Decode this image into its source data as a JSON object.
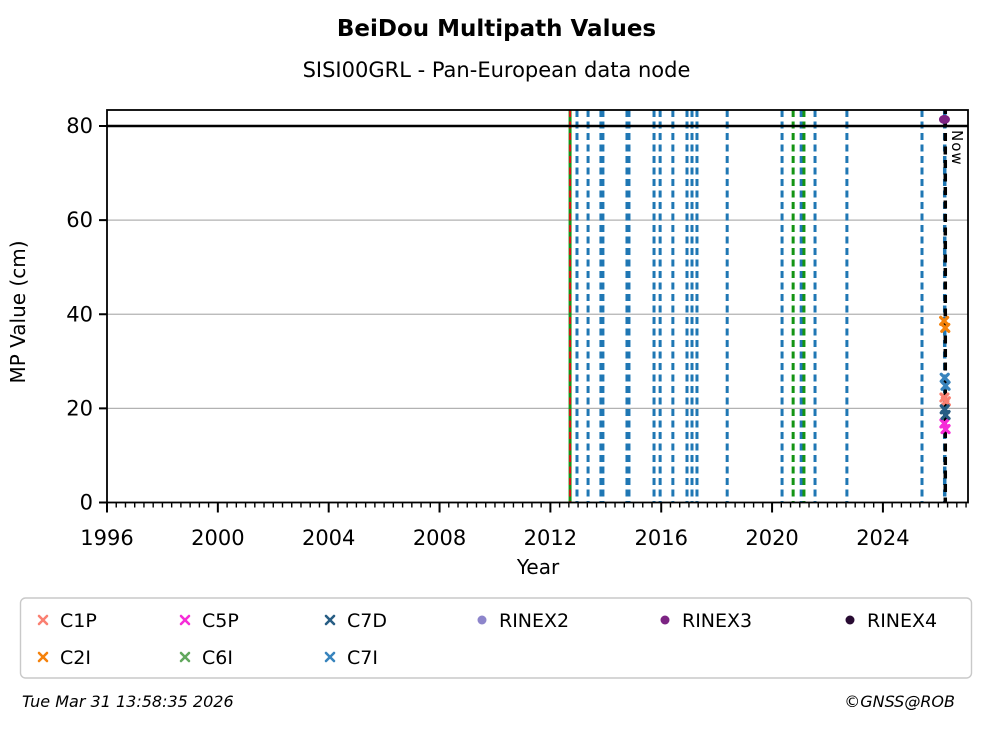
{
  "header": {
    "title": "BeiDou Multipath Values",
    "subtitle": "SISI00GRL - Pan-European data node"
  },
  "footer": {
    "timestamp": "Tue Mar 31 13:58:35 2026",
    "credit": "©GNSS@ROB"
  },
  "chart_data": {
    "type": "scatter",
    "title": "BeiDou Multipath Values",
    "subtitle": "SISI00GRL - Pan-European data node",
    "xlabel": "Year",
    "ylabel": "MP Value (cm)",
    "xlim": [
      1996,
      2027.07
    ],
    "ylim": [
      0,
      83.4
    ],
    "x_major_ticks": [
      1996,
      2000,
      2004,
      2008,
      2012,
      2016,
      2020,
      2024
    ],
    "x_minor_tick_step_years": 0.33333,
    "y_ticks": [
      0,
      20,
      40,
      60,
      80
    ],
    "grid_y": [
      20,
      40,
      60
    ],
    "grid_color": "#b2b2b2",
    "saturation_line": {
      "y": 80,
      "color": "#000000",
      "width": 2.5
    },
    "now_line": {
      "year": 2026.25,
      "label": "Now",
      "color": "#000000"
    },
    "event_lines": [
      {
        "year": 2012.71,
        "color": "#149414",
        "style": "solid",
        "width": 3
      },
      {
        "year": 2012.71,
        "color": "#dd1111",
        "style": "dashed",
        "width": 2
      },
      {
        "year": 2012.96,
        "color": "#1f77b4",
        "style": "dashed",
        "width": 3
      },
      {
        "year": 2013.36,
        "color": "#1f77b4",
        "style": "dashed",
        "width": 3
      },
      {
        "year": 2013.86,
        "color": "#1f77b4",
        "style": "dashed",
        "width": 5
      },
      {
        "year": 2014.8,
        "color": "#1f77b4",
        "style": "dashed",
        "width": 5
      },
      {
        "year": 2015.74,
        "color": "#1f77b4",
        "style": "dashed",
        "width": 3
      },
      {
        "year": 2015.96,
        "color": "#1f77b4",
        "style": "dashed",
        "width": 3
      },
      {
        "year": 2016.42,
        "color": "#1f77b4",
        "style": "dashed",
        "width": 3
      },
      {
        "year": 2016.93,
        "color": "#1f77b4",
        "style": "dashed",
        "width": 3
      },
      {
        "year": 2017.11,
        "color": "#1f77b4",
        "style": "dashed",
        "width": 3
      },
      {
        "year": 2017.29,
        "color": "#1f77b4",
        "style": "dashed",
        "width": 3
      },
      {
        "year": 2018.38,
        "color": "#1f77b4",
        "style": "dashed",
        "width": 3
      },
      {
        "year": 2020.36,
        "color": "#1f77b4",
        "style": "dashed",
        "width": 3
      },
      {
        "year": 2020.76,
        "color": "#149414",
        "style": "dashed",
        "width": 3
      },
      {
        "year": 2021.05,
        "color": "#1f77b4",
        "style": "dashed",
        "width": 3
      },
      {
        "year": 2021.15,
        "color": "#149414",
        "style": "dashed",
        "width": 3
      },
      {
        "year": 2021.55,
        "color": "#1f77b4",
        "style": "dashed",
        "width": 3
      },
      {
        "year": 2022.7,
        "color": "#1f77b4",
        "style": "dashed",
        "width": 3
      },
      {
        "year": 2025.41,
        "color": "#1f77b4",
        "style": "dashed",
        "width": 3
      },
      {
        "year": 2026.23,
        "color": "#1f77b4",
        "style": "dashed",
        "width": 3.5
      }
    ],
    "series": [
      {
        "name": "C1P",
        "color": "#fa8072",
        "marker": "x",
        "points": [
          {
            "x": 2026.22,
            "y": 22.3
          },
          {
            "x": 2026.27,
            "y": 21.5
          }
        ]
      },
      {
        "name": "C2I",
        "color": "#f5820b",
        "marker": "x",
        "points": [
          {
            "x": 2026.21,
            "y": 38.6
          },
          {
            "x": 2026.25,
            "y": 37.1
          }
        ]
      },
      {
        "name": "C5P",
        "color": "#f62dd8",
        "marker": "x",
        "points": [
          {
            "x": 2026.22,
            "y": 16.8
          },
          {
            "x": 2026.26,
            "y": 15.6
          }
        ]
      },
      {
        "name": "C6I",
        "color": "#62a85e",
        "marker": "x",
        "points": []
      },
      {
        "name": "C7D",
        "color": "#275d84",
        "marker": "x",
        "points": [
          {
            "x": 2026.23,
            "y": 19.8
          },
          {
            "x": 2026.26,
            "y": 18.6
          }
        ]
      },
      {
        "name": "C7I",
        "color": "#3884bd",
        "marker": "x",
        "points": [
          {
            "x": 2026.23,
            "y": 26.5
          },
          {
            "x": 2026.26,
            "y": 24.8
          }
        ]
      },
      {
        "name": "RINEX2",
        "color": "#8d85cb",
        "marker": "o",
        "points": []
      },
      {
        "name": "RINEX3",
        "color": "#7c2483",
        "marker": "o",
        "points": [
          {
            "x": 2026.22,
            "y": 81.4
          }
        ]
      },
      {
        "name": "RINEX4",
        "color": "#280b32",
        "marker": "o",
        "points": []
      }
    ],
    "legend": {
      "rows": [
        [
          "C1P",
          "C5P",
          "C7D",
          "RINEX2",
          "RINEX3",
          "RINEX4"
        ],
        [
          "C2I",
          "C6I",
          "C7I"
        ]
      ]
    }
  }
}
